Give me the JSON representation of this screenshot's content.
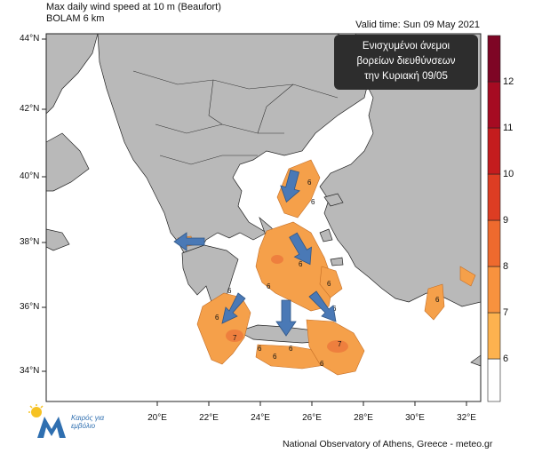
{
  "header": {
    "title": "Max daily wind speed at 10 m (Beaufort)",
    "model": "BOLAM 6 km",
    "valid_time": "Valid time: Sun 09 May 2021"
  },
  "callout": {
    "line1": "Ενισχυμένοι άνεμοι",
    "line2": "βορείων διευθύνσεων",
    "line3": "την Κυριακή 09/05"
  },
  "axes": {
    "lat_labels": [
      "44°N",
      "42°N",
      "40°N",
      "38°N",
      "36°N",
      "34°N"
    ],
    "lon_labels": [
      "20°E",
      "22°E",
      "24°E",
      "26°E",
      "28°E",
      "30°E",
      "32°E"
    ]
  },
  "colorbar": {
    "labels": [
      "6",
      "7",
      "8",
      "9",
      "10",
      "11",
      "12"
    ],
    "colors": [
      "#ffffff",
      "#fdb24f",
      "#f8923e",
      "#ee6a2e",
      "#dd3d23",
      "#c41c1e",
      "#a60b22",
      "#7e0525"
    ]
  },
  "map_labels": [
    "6",
    "6",
    "6",
    "6",
    "6",
    "6",
    "6",
    "6",
    "6",
    "6",
    "7",
    "7",
    "6",
    "6",
    "6"
  ],
  "colors": {
    "land": "#b9b9b9",
    "sea": "#ffffff",
    "wind_6": "#f5a04a",
    "wind_7": "#ee7f3e",
    "arrow": "#4a79b6"
  },
  "logo": {
    "text_line1": "Καιρός για",
    "text_line2": "εμβόλιο"
  },
  "footer": "National Observatory of Athens, Greece - meteo.gr"
}
